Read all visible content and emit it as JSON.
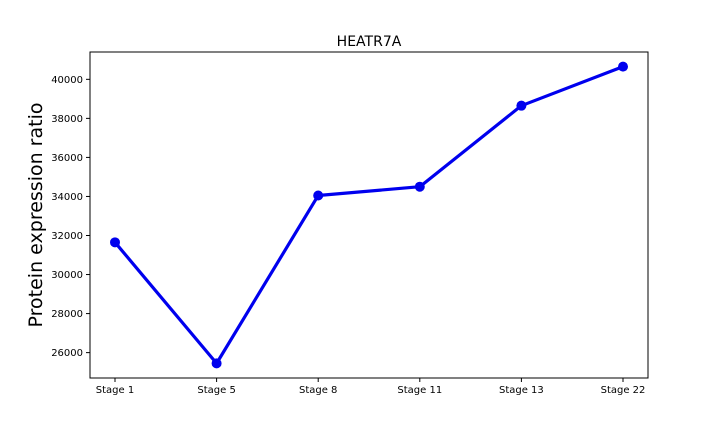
{
  "chart_data": {
    "type": "line",
    "title": "HEATR7A",
    "xlabel": "",
    "ylabel": "Protein expression ratio",
    "categories": [
      "Stage 1",
      "Stage 5",
      "Stage 8",
      "Stage 11",
      "Stage 13",
      "Stage 22"
    ],
    "series": [
      {
        "values": [
          31650,
          25450,
          34050,
          34500,
          38650,
          40650
        ],
        "color": "#0000ee"
      }
    ],
    "ylim": [
      24700,
      41400
    ],
    "yticks": [
      26000,
      28000,
      30000,
      32000,
      34000,
      36000,
      38000,
      40000
    ],
    "grid": false,
    "legend": "none"
  }
}
